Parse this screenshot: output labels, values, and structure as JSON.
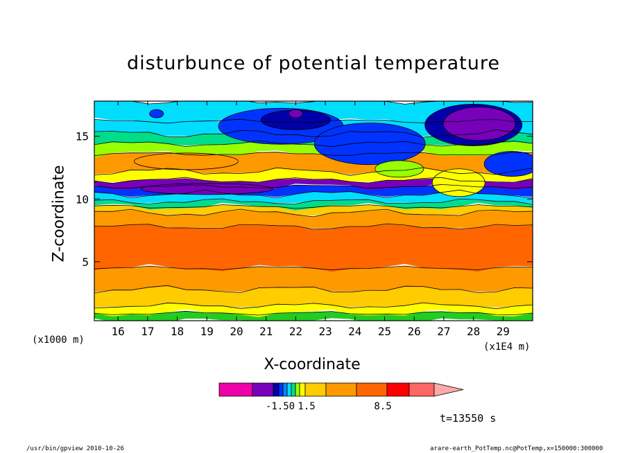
{
  "chart_data": {
    "type": "heatmap",
    "title": "disturbunce of potential temperature",
    "xlabel": "X-coordinate",
    "ylabel": "Z-coordinate",
    "x_unit_left": "(x1000 m)",
    "x_unit_right": "(x1E4 m)",
    "xlim": [
      15.2,
      30.0
    ],
    "ylim": [
      0.3,
      17.8
    ],
    "x_ticks": [
      16,
      17,
      18,
      19,
      20,
      21,
      22,
      23,
      24,
      25,
      26,
      27,
      28,
      29
    ],
    "y_ticks": [
      5,
      10,
      15
    ],
    "layers": [
      {
        "z0": 0.3,
        "z1": 0.9,
        "color": "#22cc22"
      },
      {
        "z0": 0.9,
        "z1": 1.5,
        "color": "#ffff00"
      },
      {
        "z0": 1.5,
        "z1": 2.8,
        "color": "#ffcc00"
      },
      {
        "z0": 2.8,
        "z1": 4.5,
        "color": "#ff9900"
      },
      {
        "z0": 4.5,
        "z1": 7.8,
        "color": "#ff6600"
      },
      {
        "z0": 7.8,
        "z1": 8.9,
        "color": "#ff9900"
      },
      {
        "z0": 8.9,
        "z1": 9.4,
        "color": "#ffcc00"
      },
      {
        "z0": 9.4,
        "z1": 9.8,
        "color": "#00dd88"
      },
      {
        "z0": 9.8,
        "z1": 10.4,
        "color": "#00ddff"
      },
      {
        "z0": 10.4,
        "z1": 11.0,
        "color": "#0033ff"
      },
      {
        "z0": 11.0,
        "z1": 11.5,
        "color": "#7700bb"
      },
      {
        "z0": 11.5,
        "z1": 12.2,
        "color": "#ffff00"
      },
      {
        "z0": 12.2,
        "z1": 13.6,
        "color": "#ff9900"
      },
      {
        "z0": 13.6,
        "z1": 14.4,
        "color": "#99ff00"
      },
      {
        "z0": 14.4,
        "z1": 15.2,
        "color": "#00dd88"
      },
      {
        "z0": 15.2,
        "z1": 16.2,
        "color": "#00ddff"
      },
      {
        "z0": 16.2,
        "z1": 17.8,
        "color": "#00ddff"
      }
    ],
    "colorbar": {
      "colors": [
        "#ee00aa",
        "#7700bb",
        "#0000aa",
        "#0033ff",
        "#0088ff",
        "#00ddff",
        "#00dd88",
        "#99ff00",
        "#ffff00",
        "#ffcc00",
        "#ff9900",
        "#ff6600",
        "#ff0000",
        "#ff6666",
        "#ffaaaa"
      ],
      "labels": [
        "-1.50",
        "1.5",
        "8.5"
      ]
    },
    "grid": false
  },
  "annotations": {
    "time": "t=13550 s",
    "program": "/usr/bin/gpview   2010-10-26",
    "source": "arare-earth_PotTemp.nc@PotTemp,x=150000:300000"
  }
}
